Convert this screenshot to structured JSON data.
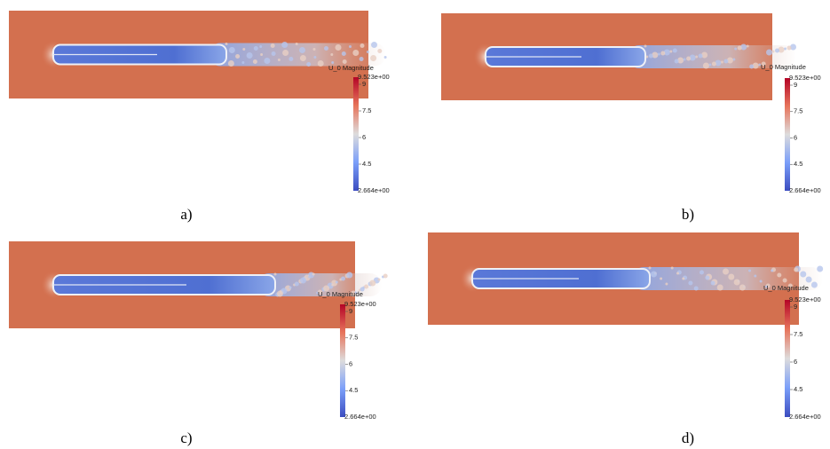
{
  "panels": [
    {
      "caption": "a)",
      "colorbar": {
        "title": "U_0 Magnitude",
        "max": "9.523e+00",
        "ticks": [
          "9",
          "7.5",
          "6",
          "4.5"
        ],
        "min": "2.664e+00"
      }
    },
    {
      "caption": "b)",
      "colorbar": {
        "title": "U_0 Magnitude",
        "max": "9.523e+00",
        "ticks": [
          "9",
          "7.5",
          "6",
          "4.5"
        ],
        "min": "2.664e+00"
      }
    },
    {
      "caption": "c)",
      "colorbar": {
        "title": "U_0 Magnitude",
        "max": "9.523e+00",
        "ticks": [
          "9",
          "7.5",
          "6",
          "4.5"
        ],
        "min": "2.664e+00"
      }
    },
    {
      "caption": "d)",
      "colorbar": {
        "title": "U_0 Magnitude",
        "max": "9.523e+00",
        "ticks": [
          "9",
          "7.5",
          "6",
          "4.5"
        ],
        "min": "2.664e+00"
      }
    }
  ]
}
